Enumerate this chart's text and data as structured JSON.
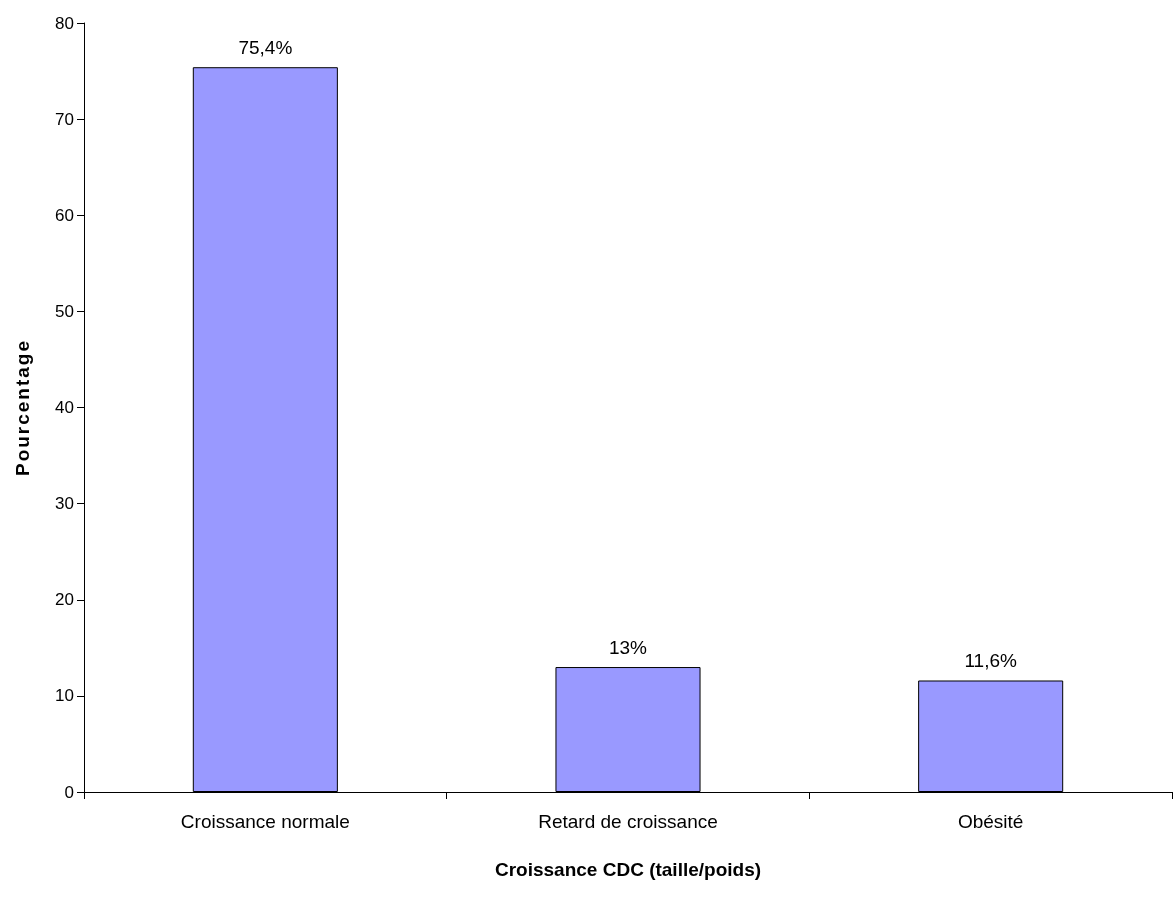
{
  "chart_data": {
    "type": "bar",
    "xlabel": "Croissance CDC (taille/poids)",
    "ylabel": "Pourcentage",
    "categories": [
      "Croissance normale",
      "Retard de croissance",
      "Obésité"
    ],
    "values": [
      75.4,
      13,
      11.6
    ],
    "value_labels": [
      "75,4%",
      "13%",
      "11,6%"
    ],
    "color": "#9999ff",
    "ylim": [
      0,
      80
    ],
    "yticks": [
      0,
      10,
      20,
      30,
      40,
      50,
      60,
      70,
      80
    ],
    "grid": false
  }
}
